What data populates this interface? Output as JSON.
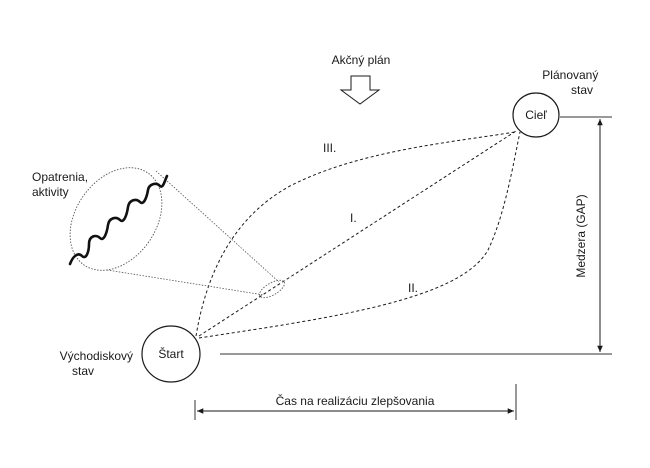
{
  "header": {
    "action_plan_label": "Akčný plán"
  },
  "nodes": {
    "start_label": "Štart",
    "goal_label": "Cieľ",
    "start_state_line1": "Východiskový",
    "start_state_line2": "stav",
    "planned_state_line1": "Plánovaný",
    "planned_state_line2": "stav"
  },
  "paths": {
    "path_1_label": "I.",
    "path_2_label": "II.",
    "path_3_label": "III."
  },
  "callout": {
    "line1": "Opatrenia,",
    "line2": "aktivity"
  },
  "axes": {
    "gap_label": "Medzera (GAP)",
    "time_label": "Čas na realizáciu zlepšovania"
  }
}
